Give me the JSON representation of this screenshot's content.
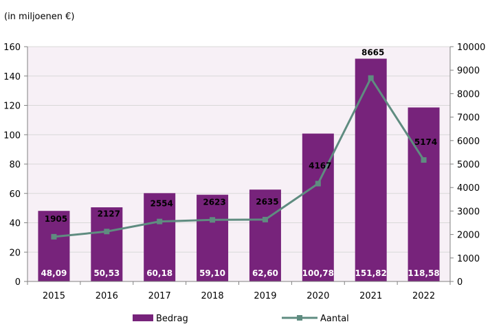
{
  "unit_label": "(in miljoenen €)",
  "colors": {
    "bar": "#77237b",
    "line": "#5f8c80",
    "plot_bg": "#f7f0f6",
    "axis": "#808080"
  },
  "chart_data": {
    "type": "bar",
    "categories": [
      "2015",
      "2016",
      "2017",
      "2018",
      "2019",
      "2020",
      "2021",
      "2022"
    ],
    "series": [
      {
        "name": "Bedrag",
        "type": "bar",
        "axis": "left",
        "values": [
          48.09,
          50.53,
          60.18,
          59.1,
          62.6,
          100.78,
          151.82,
          118.58
        ],
        "labels": [
          "48,09",
          "50,53",
          "60,18",
          "59,10",
          "62,60",
          "100,78",
          "151,82",
          "118,58"
        ]
      },
      {
        "name": "Aantal",
        "type": "line",
        "axis": "right",
        "values": [
          1905,
          2127,
          2554,
          2623,
          2635,
          4167,
          8665,
          5174
        ],
        "labels": [
          "1905",
          "2127",
          "2554",
          "2623",
          "2635",
          "4167",
          "8665",
          "5174"
        ]
      }
    ],
    "y_left": {
      "lim": [
        0,
        160
      ],
      "ticks": [
        "0",
        "20",
        "40",
        "60",
        "80",
        "100",
        "120",
        "140",
        "160"
      ]
    },
    "y_right": {
      "lim": [
        0,
        10000
      ],
      "ticks": [
        "0",
        "1000",
        "2000",
        "3000",
        "4000",
        "5000",
        "6000",
        "7000",
        "8000",
        "9000",
        "10000"
      ]
    },
    "grid": true,
    "legend": "bottom"
  }
}
